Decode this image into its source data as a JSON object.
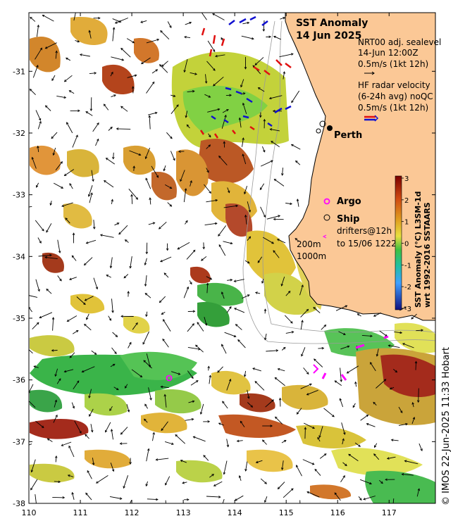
{
  "title": {
    "line1": "SST Anomaly",
    "line2": "14 Jun 2025"
  },
  "legend": {
    "sealevel": {
      "line1": "NRT00 adj. sealevel",
      "line2": "14-Jun 12:00Z",
      "line3": "0.5m/s (1kt 12h)"
    },
    "radar": {
      "line1": "HF radar velocity",
      "line2": "(6-24h avg) noQC",
      "line3": "0.5m/s (1kt 12h)"
    },
    "argo": "Argo",
    "ship": "Ship",
    "drifters": {
      "line1": "drifters@12h",
      "line2": "to 15/06 1222"
    },
    "isobaths": [
      "200m",
      "1000m"
    ]
  },
  "city": "Perth",
  "colorbar": {
    "label_line1": "SST Anomaly (°C) L3SM-1d",
    "label_line2": "wrt 1992-2016 SSTAARS",
    "ticks": [
      "3",
      "2",
      "1",
      "0",
      "-1",
      "-2",
      "-3"
    ],
    "min": -3,
    "max": 3
  },
  "axes": {
    "x_ticks": [
      "110",
      "111",
      "112",
      "113",
      "114",
      "115",
      "116",
      "117"
    ],
    "y_ticks": [
      "-31",
      "-32",
      "-33",
      "-34",
      "-35",
      "-36",
      "-37",
      "-38"
    ],
    "lon_range": [
      110,
      117.9
    ],
    "lat_range": [
      -38,
      -30.05
    ]
  },
  "credit": "© IMOS 22-Jun-2025 11:33 Hobart",
  "colors": {
    "land": "#fbc896",
    "argo": "#ff00ff",
    "radar_a": "#1010d0",
    "radar_b": "#e01010"
  }
}
